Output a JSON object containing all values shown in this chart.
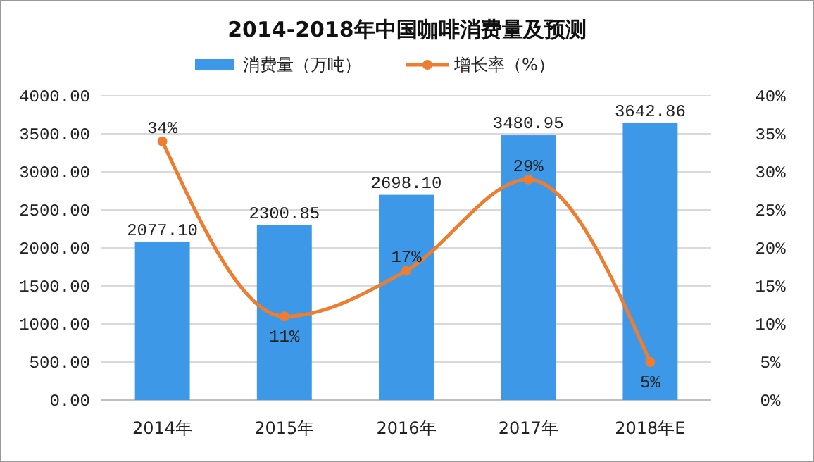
{
  "chart_data": {
    "type": "bar",
    "title": "2014-2018年中国咖啡消费量及预测",
    "categories": [
      "2014年",
      "2015年",
      "2016年",
      "2017年",
      "2018年E"
    ],
    "series": [
      {
        "name": "消费量（万吨）",
        "color": "#3d99e8",
        "values": [
          2077.1,
          2300.85,
          2698.1,
          3480.95,
          3642.86
        ],
        "value_labels": [
          "2077.10",
          "2300.85",
          "2698.10",
          "3480.95",
          "3642.86"
        ]
      },
      {
        "name": "增长率（%）",
        "type": "line",
        "axis": "y2",
        "color": "#ed7d31",
        "values": [
          34,
          11,
          17,
          29,
          5
        ],
        "value_labels": [
          "34%",
          "11%",
          "17%",
          "29%",
          "5%"
        ],
        "marker": "circle"
      }
    ],
    "ylim": [
      0,
      4000
    ],
    "yticks": [
      {
        "value": 0,
        "label": "0.00"
      },
      {
        "value": 500,
        "label": "500.00"
      },
      {
        "value": 1000,
        "label": "1000.00"
      },
      {
        "value": 1500,
        "label": "1500.00"
      },
      {
        "value": 2000,
        "label": "2000.00"
      },
      {
        "value": 2500,
        "label": "2500.00"
      },
      {
        "value": 3000,
        "label": "3000.00"
      },
      {
        "value": 3500,
        "label": "3500.00"
      },
      {
        "value": 4000,
        "label": "4000.00"
      }
    ],
    "y2lim": [
      0,
      40
    ],
    "y2ticks": [
      {
        "value": 0,
        "label": "0%"
      },
      {
        "value": 5,
        "label": "5%"
      },
      {
        "value": 10,
        "label": "10%"
      },
      {
        "value": 15,
        "label": "15%"
      },
      {
        "value": 20,
        "label": "20%"
      },
      {
        "value": 25,
        "label": "25%"
      },
      {
        "value": 30,
        "label": "30%"
      },
      {
        "value": 35,
        "label": "35%"
      },
      {
        "value": 40,
        "label": "40%"
      }
    ],
    "grid": "y",
    "legend": "top"
  }
}
